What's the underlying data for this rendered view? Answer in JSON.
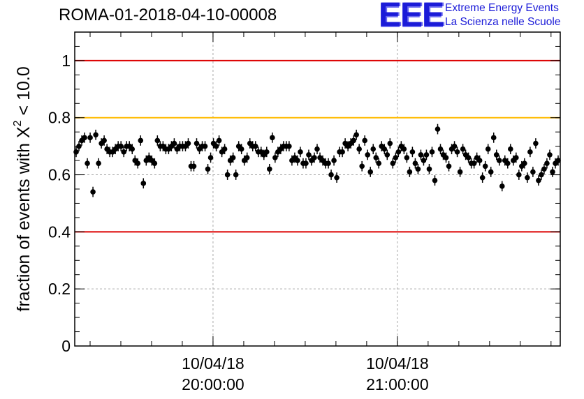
{
  "header": {
    "run_id": "ROMA-01-2018-04-10-00008",
    "logo_mark": "EEE",
    "logo_line1": "Extreme Energy Events",
    "logo_line2": "La Scienza nelle Scuole"
  },
  "chart_data": {
    "type": "scatter",
    "title": "ROMA-01-2018-04-10-00008",
    "xlabel": "",
    "ylabel_prefix": "fraction of events with ",
    "ylabel_symbol": "X",
    "ylabel_sup": "2",
    "ylabel_suffix": " < 10.0",
    "ylim": [
      0,
      1.1
    ],
    "yticks": [
      {
        "value": 0,
        "label": "0"
      },
      {
        "value": 0.2,
        "label": "0.2"
      },
      {
        "value": 0.4,
        "label": "0.4"
      },
      {
        "value": 0.6,
        "label": "0.6"
      },
      {
        "value": 0.8,
        "label": "0.8"
      },
      {
        "value": 1,
        "label": "1"
      }
    ],
    "xlim_minutes": [
      -45,
      113
    ],
    "xticks": [
      {
        "minutes": 0,
        "date": "10/04/18",
        "time": "20:00:00"
      },
      {
        "minutes": 60,
        "date": "10/04/18",
        "time": "21:00:00"
      }
    ],
    "grid": true,
    "reference_lines": [
      {
        "value": 1.0,
        "color": "#dd0000"
      },
      {
        "value": 0.8,
        "color": "#ffbb00"
      },
      {
        "value": 0.4,
        "color": "#dd0000"
      }
    ],
    "error_bar": 0.018,
    "marker_color": "#000000",
    "values": [
      0.68,
      0.7,
      0.72,
      0.73,
      0.64,
      0.73,
      0.54,
      0.74,
      0.64,
      0.71,
      0.72,
      0.69,
      0.68,
      0.68,
      0.69,
      0.7,
      0.7,
      0.68,
      0.7,
      0.7,
      0.69,
      0.65,
      0.64,
      0.72,
      0.57,
      0.65,
      0.66,
      0.65,
      0.64,
      0.72,
      0.7,
      0.7,
      0.69,
      0.69,
      0.7,
      0.71,
      0.69,
      0.7,
      0.7,
      0.7,
      0.71,
      0.63,
      0.63,
      0.71,
      0.69,
      0.7,
      0.7,
      0.62,
      0.66,
      0.71,
      0.7,
      0.72,
      0.68,
      0.69,
      0.6,
      0.65,
      0.66,
      0.6,
      0.7,
      0.69,
      0.65,
      0.66,
      0.71,
      0.7,
      0.7,
      0.68,
      0.68,
      0.67,
      0.68,
      0.62,
      0.73,
      0.66,
      0.68,
      0.69,
      0.7,
      0.7,
      0.7,
      0.65,
      0.66,
      0.65,
      0.68,
      0.64,
      0.64,
      0.67,
      0.65,
      0.66,
      0.69,
      0.66,
      0.65,
      0.64,
      0.64,
      0.6,
      0.65,
      0.59,
      0.68,
      0.68,
      0.71,
      0.7,
      0.71,
      0.72,
      0.74,
      0.69,
      0.63,
      0.72,
      0.67,
      0.61,
      0.69,
      0.66,
      0.64,
      0.7,
      0.69,
      0.67,
      0.71,
      0.64,
      0.66,
      0.68,
      0.7,
      0.69,
      0.66,
      0.61,
      0.68,
      0.64,
      0.62,
      0.67,
      0.65,
      0.67,
      0.62,
      0.68,
      0.58,
      0.76,
      0.69,
      0.67,
      0.66,
      0.63,
      0.69,
      0.7,
      0.68,
      0.61,
      0.69,
      0.67,
      0.66,
      0.64,
      0.64,
      0.66,
      0.65,
      0.59,
      0.63,
      0.69,
      0.61,
      0.73,
      0.67,
      0.65,
      0.56,
      0.65,
      0.64,
      0.69,
      0.65,
      0.66,
      0.6,
      0.63,
      0.64,
      0.59,
      0.68,
      0.61,
      0.71,
      0.58,
      0.6,
      0.62,
      0.64,
      0.67,
      0.61,
      0.64,
      0.65
    ]
  }
}
